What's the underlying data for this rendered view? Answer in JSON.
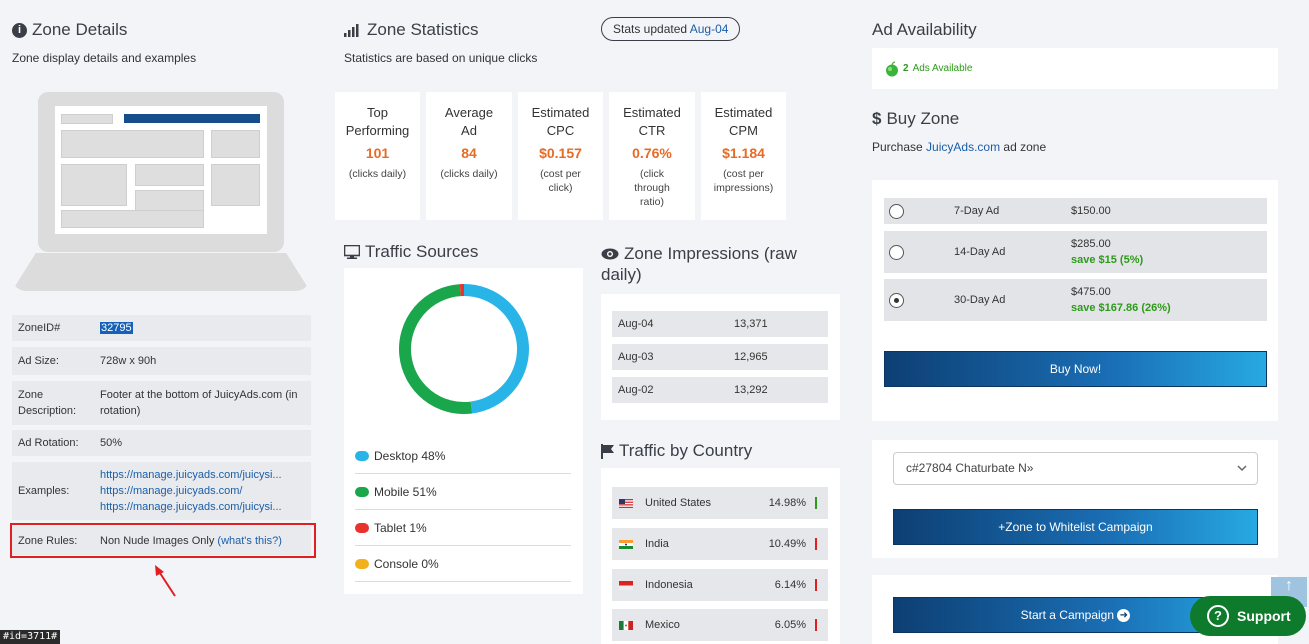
{
  "zone_details": {
    "title": "Zone Details",
    "subtitle": "Zone display details and examples",
    "rows": [
      {
        "key": "ZoneID#",
        "value": "32795"
      },
      {
        "key": "Ad Size:",
        "value": "728w x 90h"
      },
      {
        "key": "Zone Description:",
        "value": "Footer at the bottom of JuicyAds.com (in rotation)"
      },
      {
        "key": "Ad Rotation:",
        "value": "50%"
      },
      {
        "key": "Examples:",
        "links": [
          "https://manage.juicyads.com/juicysi...",
          "https://manage.juicyads.com/",
          "https://manage.juicyads.com/juicysi..."
        ]
      },
      {
        "key": "Zone Rules:",
        "value": "Non Nude Images Only",
        "link": "(what's this?)"
      }
    ]
  },
  "zone_statistics": {
    "title": "Zone Statistics",
    "subtitle": "Statistics are based on unique clicks",
    "badge_prefix": "Stats updated",
    "badge_date": "Aug-04",
    "cards": [
      {
        "title": [
          "Top",
          "Performing"
        ],
        "value": "101",
        "note": [
          "(clicks daily)"
        ]
      },
      {
        "title": [
          "Average",
          "Ad"
        ],
        "value": "84",
        "note": [
          "(clicks daily)"
        ]
      },
      {
        "title": [
          "Estimated",
          "CPC"
        ],
        "value": "$0.157",
        "note": [
          "(cost per",
          "click)"
        ]
      },
      {
        "title": [
          "Estimated",
          "CTR"
        ],
        "value": "0.76%",
        "note": [
          "(click",
          "through",
          "ratio)"
        ]
      },
      {
        "title": [
          "Estimated",
          "CPM"
        ],
        "value": "$1.184",
        "note": [
          "(cost per",
          "impressions)"
        ]
      }
    ]
  },
  "traffic_sources": {
    "title": "Traffic Sources",
    "items": [
      {
        "label": "Desktop 48%",
        "value": 48,
        "color": "#29b4e8"
      },
      {
        "label": "Mobile 51%",
        "value": 51,
        "color": "#1aa64a"
      },
      {
        "label": "Tablet 1%",
        "value": 1,
        "color": "#e8322e"
      },
      {
        "label": "Console 0%",
        "value": 0,
        "color": "#f2b01e"
      }
    ]
  },
  "zone_impressions": {
    "title_line1": "Zone Impressions (raw",
    "title_line2": "daily)",
    "rows": [
      {
        "date": "Aug-04",
        "value": "13,371"
      },
      {
        "date": "Aug-03",
        "value": "12,965"
      },
      {
        "date": "Aug-02",
        "value": "13,292"
      }
    ]
  },
  "traffic_by_country": {
    "title": "Traffic by Country",
    "rows": [
      {
        "country": "United States",
        "pct": "14.98%",
        "trend_color": "#2e9a1a"
      },
      {
        "country": "India",
        "pct": "10.49%",
        "trend_color": "#e02020"
      },
      {
        "country": "Indonesia",
        "pct": "6.14%",
        "trend_color": "#e02020"
      },
      {
        "country": "Mexico",
        "pct": "6.05%",
        "trend_color": "#e02020"
      }
    ]
  },
  "ad_availability": {
    "title": "Ad Availability",
    "count": "2",
    "label": "Ads Available"
  },
  "buy_zone": {
    "title": "Buy Zone",
    "sub_prefix": "Purchase",
    "sub_link": "JuicyAds.com",
    "sub_suffix": "ad zone",
    "options": [
      {
        "label": "7-Day Ad",
        "price": "$150.00",
        "save": "",
        "selected": false
      },
      {
        "label": "14-Day Ad",
        "price": "$285.00",
        "save": "save $15 (5%)",
        "selected": false
      },
      {
        "label": "30-Day Ad",
        "price": "$475.00",
        "save": "save $167.86 (26%)",
        "selected": true
      }
    ],
    "buy_button": "Buy Now!"
  },
  "whitelist": {
    "select_value": "c#27804 Chaturbate N»",
    "button": "+Zone to Whitelist Campaign"
  },
  "campaign": {
    "button": "Start a Campaign"
  },
  "support": {
    "label": "Support"
  },
  "tooltip": {
    "text": "#id=3711#"
  }
}
